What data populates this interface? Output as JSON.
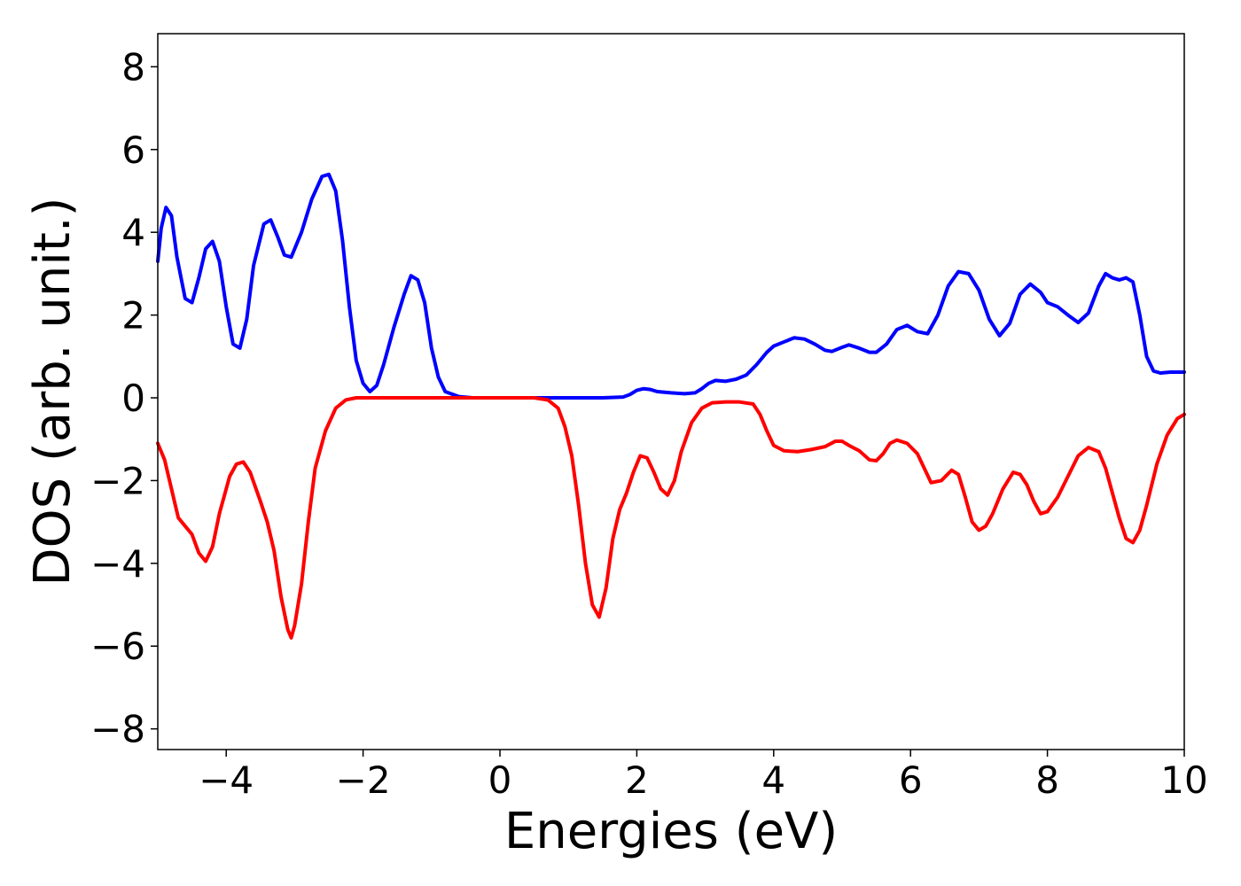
{
  "chart_data": {
    "type": "line",
    "title": "",
    "xlabel": "Energies (eV)",
    "ylabel": "DOS (arb. unit.)",
    "xlim": [
      -5,
      10
    ],
    "ylim": [
      -8.5,
      8.8
    ],
    "xticks": [
      -4,
      -2,
      0,
      2,
      4,
      6,
      8,
      10
    ],
    "yticks": [
      -8,
      -6,
      -4,
      -2,
      0,
      2,
      4,
      6,
      8
    ],
    "xtick_labels": [
      "−4",
      "−2",
      "0",
      "2",
      "4",
      "6",
      "8",
      "10"
    ],
    "ytick_labels": [
      "−8",
      "−6",
      "−4",
      "−2",
      "0",
      "2",
      "4",
      "6",
      "8"
    ],
    "grid": false,
    "legend": "none",
    "series": [
      {
        "color": "#0000ff",
        "points": [
          [
            -5.0,
            3.3
          ],
          [
            -4.95,
            4.1
          ],
          [
            -4.88,
            4.6
          ],
          [
            -4.8,
            4.4
          ],
          [
            -4.72,
            3.4
          ],
          [
            -4.6,
            2.4
          ],
          [
            -4.5,
            2.3
          ],
          [
            -4.4,
            2.9
          ],
          [
            -4.3,
            3.6
          ],
          [
            -4.2,
            3.78
          ],
          [
            -4.1,
            3.3
          ],
          [
            -4.0,
            2.2
          ],
          [
            -3.9,
            1.3
          ],
          [
            -3.8,
            1.2
          ],
          [
            -3.7,
            1.9
          ],
          [
            -3.6,
            3.2
          ],
          [
            -3.45,
            4.2
          ],
          [
            -3.35,
            4.3
          ],
          [
            -3.25,
            3.9
          ],
          [
            -3.15,
            3.45
          ],
          [
            -3.05,
            3.4
          ],
          [
            -2.9,
            4.0
          ],
          [
            -2.75,
            4.8
          ],
          [
            -2.6,
            5.35
          ],
          [
            -2.5,
            5.4
          ],
          [
            -2.4,
            5.0
          ],
          [
            -2.3,
            3.8
          ],
          [
            -2.2,
            2.2
          ],
          [
            -2.1,
            0.9
          ],
          [
            -2.0,
            0.35
          ],
          [
            -1.9,
            0.15
          ],
          [
            -1.8,
            0.3
          ],
          [
            -1.7,
            0.8
          ],
          [
            -1.55,
            1.7
          ],
          [
            -1.4,
            2.5
          ],
          [
            -1.3,
            2.95
          ],
          [
            -1.2,
            2.85
          ],
          [
            -1.1,
            2.3
          ],
          [
            -1.0,
            1.2
          ],
          [
            -0.9,
            0.5
          ],
          [
            -0.8,
            0.15
          ],
          [
            -0.6,
            0.03
          ],
          [
            -0.4,
            0.0
          ],
          [
            0.0,
            0.0
          ],
          [
            0.5,
            0.0
          ],
          [
            1.0,
            0.0
          ],
          [
            1.5,
            0.0
          ],
          [
            1.8,
            0.02
          ],
          [
            1.9,
            0.08
          ],
          [
            2.0,
            0.18
          ],
          [
            2.1,
            0.22
          ],
          [
            2.2,
            0.2
          ],
          [
            2.3,
            0.15
          ],
          [
            2.5,
            0.12
          ],
          [
            2.7,
            0.1
          ],
          [
            2.85,
            0.12
          ],
          [
            2.95,
            0.22
          ],
          [
            3.05,
            0.35
          ],
          [
            3.15,
            0.42
          ],
          [
            3.3,
            0.4
          ],
          [
            3.45,
            0.45
          ],
          [
            3.6,
            0.55
          ],
          [
            3.75,
            0.8
          ],
          [
            3.9,
            1.1
          ],
          [
            4.0,
            1.25
          ],
          [
            4.15,
            1.35
          ],
          [
            4.3,
            1.45
          ],
          [
            4.45,
            1.42
          ],
          [
            4.6,
            1.3
          ],
          [
            4.75,
            1.15
          ],
          [
            4.85,
            1.12
          ],
          [
            5.0,
            1.22
          ],
          [
            5.1,
            1.28
          ],
          [
            5.25,
            1.2
          ],
          [
            5.4,
            1.1
          ],
          [
            5.5,
            1.1
          ],
          [
            5.65,
            1.3
          ],
          [
            5.8,
            1.65
          ],
          [
            5.95,
            1.75
          ],
          [
            6.1,
            1.6
          ],
          [
            6.25,
            1.55
          ],
          [
            6.4,
            2.0
          ],
          [
            6.55,
            2.7
          ],
          [
            6.7,
            3.05
          ],
          [
            6.85,
            3.0
          ],
          [
            7.0,
            2.6
          ],
          [
            7.15,
            1.9
          ],
          [
            7.3,
            1.5
          ],
          [
            7.45,
            1.8
          ],
          [
            7.6,
            2.5
          ],
          [
            7.75,
            2.75
          ],
          [
            7.9,
            2.55
          ],
          [
            8.0,
            2.3
          ],
          [
            8.15,
            2.2
          ],
          [
            8.3,
            2.0
          ],
          [
            8.45,
            1.82
          ],
          [
            8.6,
            2.05
          ],
          [
            8.75,
            2.7
          ],
          [
            8.85,
            3.0
          ],
          [
            8.95,
            2.9
          ],
          [
            9.05,
            2.85
          ],
          [
            9.15,
            2.9
          ],
          [
            9.25,
            2.8
          ],
          [
            9.35,
            2.0
          ],
          [
            9.45,
            1.0
          ],
          [
            9.55,
            0.65
          ],
          [
            9.65,
            0.6
          ],
          [
            9.8,
            0.62
          ],
          [
            10.0,
            0.62
          ]
        ]
      },
      {
        "color": "#ff0000",
        "points": [
          [
            -5.0,
            -1.1
          ],
          [
            -4.9,
            -1.5
          ],
          [
            -4.8,
            -2.2
          ],
          [
            -4.7,
            -2.9
          ],
          [
            -4.6,
            -3.1
          ],
          [
            -4.5,
            -3.3
          ],
          [
            -4.4,
            -3.75
          ],
          [
            -4.3,
            -3.95
          ],
          [
            -4.2,
            -3.6
          ],
          [
            -4.1,
            -2.8
          ],
          [
            -3.95,
            -1.9
          ],
          [
            -3.85,
            -1.6
          ],
          [
            -3.75,
            -1.55
          ],
          [
            -3.65,
            -1.8
          ],
          [
            -3.5,
            -2.5
          ],
          [
            -3.4,
            -3.0
          ],
          [
            -3.3,
            -3.7
          ],
          [
            -3.2,
            -4.8
          ],
          [
            -3.1,
            -5.6
          ],
          [
            -3.05,
            -5.8
          ],
          [
            -3.0,
            -5.5
          ],
          [
            -2.9,
            -4.5
          ],
          [
            -2.8,
            -3.0
          ],
          [
            -2.7,
            -1.7
          ],
          [
            -2.55,
            -0.8
          ],
          [
            -2.4,
            -0.25
          ],
          [
            -2.25,
            -0.05
          ],
          [
            -2.1,
            0.0
          ],
          [
            -1.5,
            0.0
          ],
          [
            -1.0,
            0.0
          ],
          [
            0.0,
            0.0
          ],
          [
            0.5,
            0.0
          ],
          [
            0.7,
            -0.05
          ],
          [
            0.85,
            -0.25
          ],
          [
            0.95,
            -0.7
          ],
          [
            1.05,
            -1.4
          ],
          [
            1.15,
            -2.6
          ],
          [
            1.25,
            -4.0
          ],
          [
            1.35,
            -5.0
          ],
          [
            1.45,
            -5.3
          ],
          [
            1.55,
            -4.6
          ],
          [
            1.65,
            -3.4
          ],
          [
            1.75,
            -2.7
          ],
          [
            1.85,
            -2.3
          ],
          [
            1.95,
            -1.8
          ],
          [
            2.05,
            -1.4
          ],
          [
            2.15,
            -1.45
          ],
          [
            2.25,
            -1.8
          ],
          [
            2.35,
            -2.2
          ],
          [
            2.45,
            -2.35
          ],
          [
            2.55,
            -2.0
          ],
          [
            2.65,
            -1.3
          ],
          [
            2.8,
            -0.6
          ],
          [
            2.95,
            -0.25
          ],
          [
            3.1,
            -0.12
          ],
          [
            3.3,
            -0.1
          ],
          [
            3.5,
            -0.1
          ],
          [
            3.7,
            -0.15
          ],
          [
            3.8,
            -0.4
          ],
          [
            3.9,
            -0.8
          ],
          [
            4.0,
            -1.15
          ],
          [
            4.15,
            -1.28
          ],
          [
            4.35,
            -1.3
          ],
          [
            4.55,
            -1.25
          ],
          [
            4.75,
            -1.18
          ],
          [
            4.9,
            -1.05
          ],
          [
            5.0,
            -1.05
          ],
          [
            5.1,
            -1.15
          ],
          [
            5.25,
            -1.28
          ],
          [
            5.4,
            -1.5
          ],
          [
            5.5,
            -1.52
          ],
          [
            5.6,
            -1.35
          ],
          [
            5.7,
            -1.1
          ],
          [
            5.8,
            -1.02
          ],
          [
            5.95,
            -1.1
          ],
          [
            6.1,
            -1.35
          ],
          [
            6.2,
            -1.7
          ],
          [
            6.3,
            -2.05
          ],
          [
            6.45,
            -2.0
          ],
          [
            6.6,
            -1.75
          ],
          [
            6.7,
            -1.85
          ],
          [
            6.8,
            -2.4
          ],
          [
            6.9,
            -3.0
          ],
          [
            7.0,
            -3.2
          ],
          [
            7.1,
            -3.1
          ],
          [
            7.2,
            -2.8
          ],
          [
            7.35,
            -2.2
          ],
          [
            7.5,
            -1.8
          ],
          [
            7.6,
            -1.85
          ],
          [
            7.7,
            -2.1
          ],
          [
            7.8,
            -2.5
          ],
          [
            7.9,
            -2.8
          ],
          [
            8.0,
            -2.75
          ],
          [
            8.15,
            -2.4
          ],
          [
            8.3,
            -1.9
          ],
          [
            8.45,
            -1.4
          ],
          [
            8.6,
            -1.2
          ],
          [
            8.75,
            -1.3
          ],
          [
            8.85,
            -1.7
          ],
          [
            8.95,
            -2.3
          ],
          [
            9.05,
            -2.9
          ],
          [
            9.15,
            -3.4
          ],
          [
            9.25,
            -3.5
          ],
          [
            9.35,
            -3.2
          ],
          [
            9.45,
            -2.6
          ],
          [
            9.6,
            -1.6
          ],
          [
            9.75,
            -0.9
          ],
          [
            9.9,
            -0.5
          ],
          [
            10.0,
            -0.4
          ]
        ]
      }
    ]
  }
}
